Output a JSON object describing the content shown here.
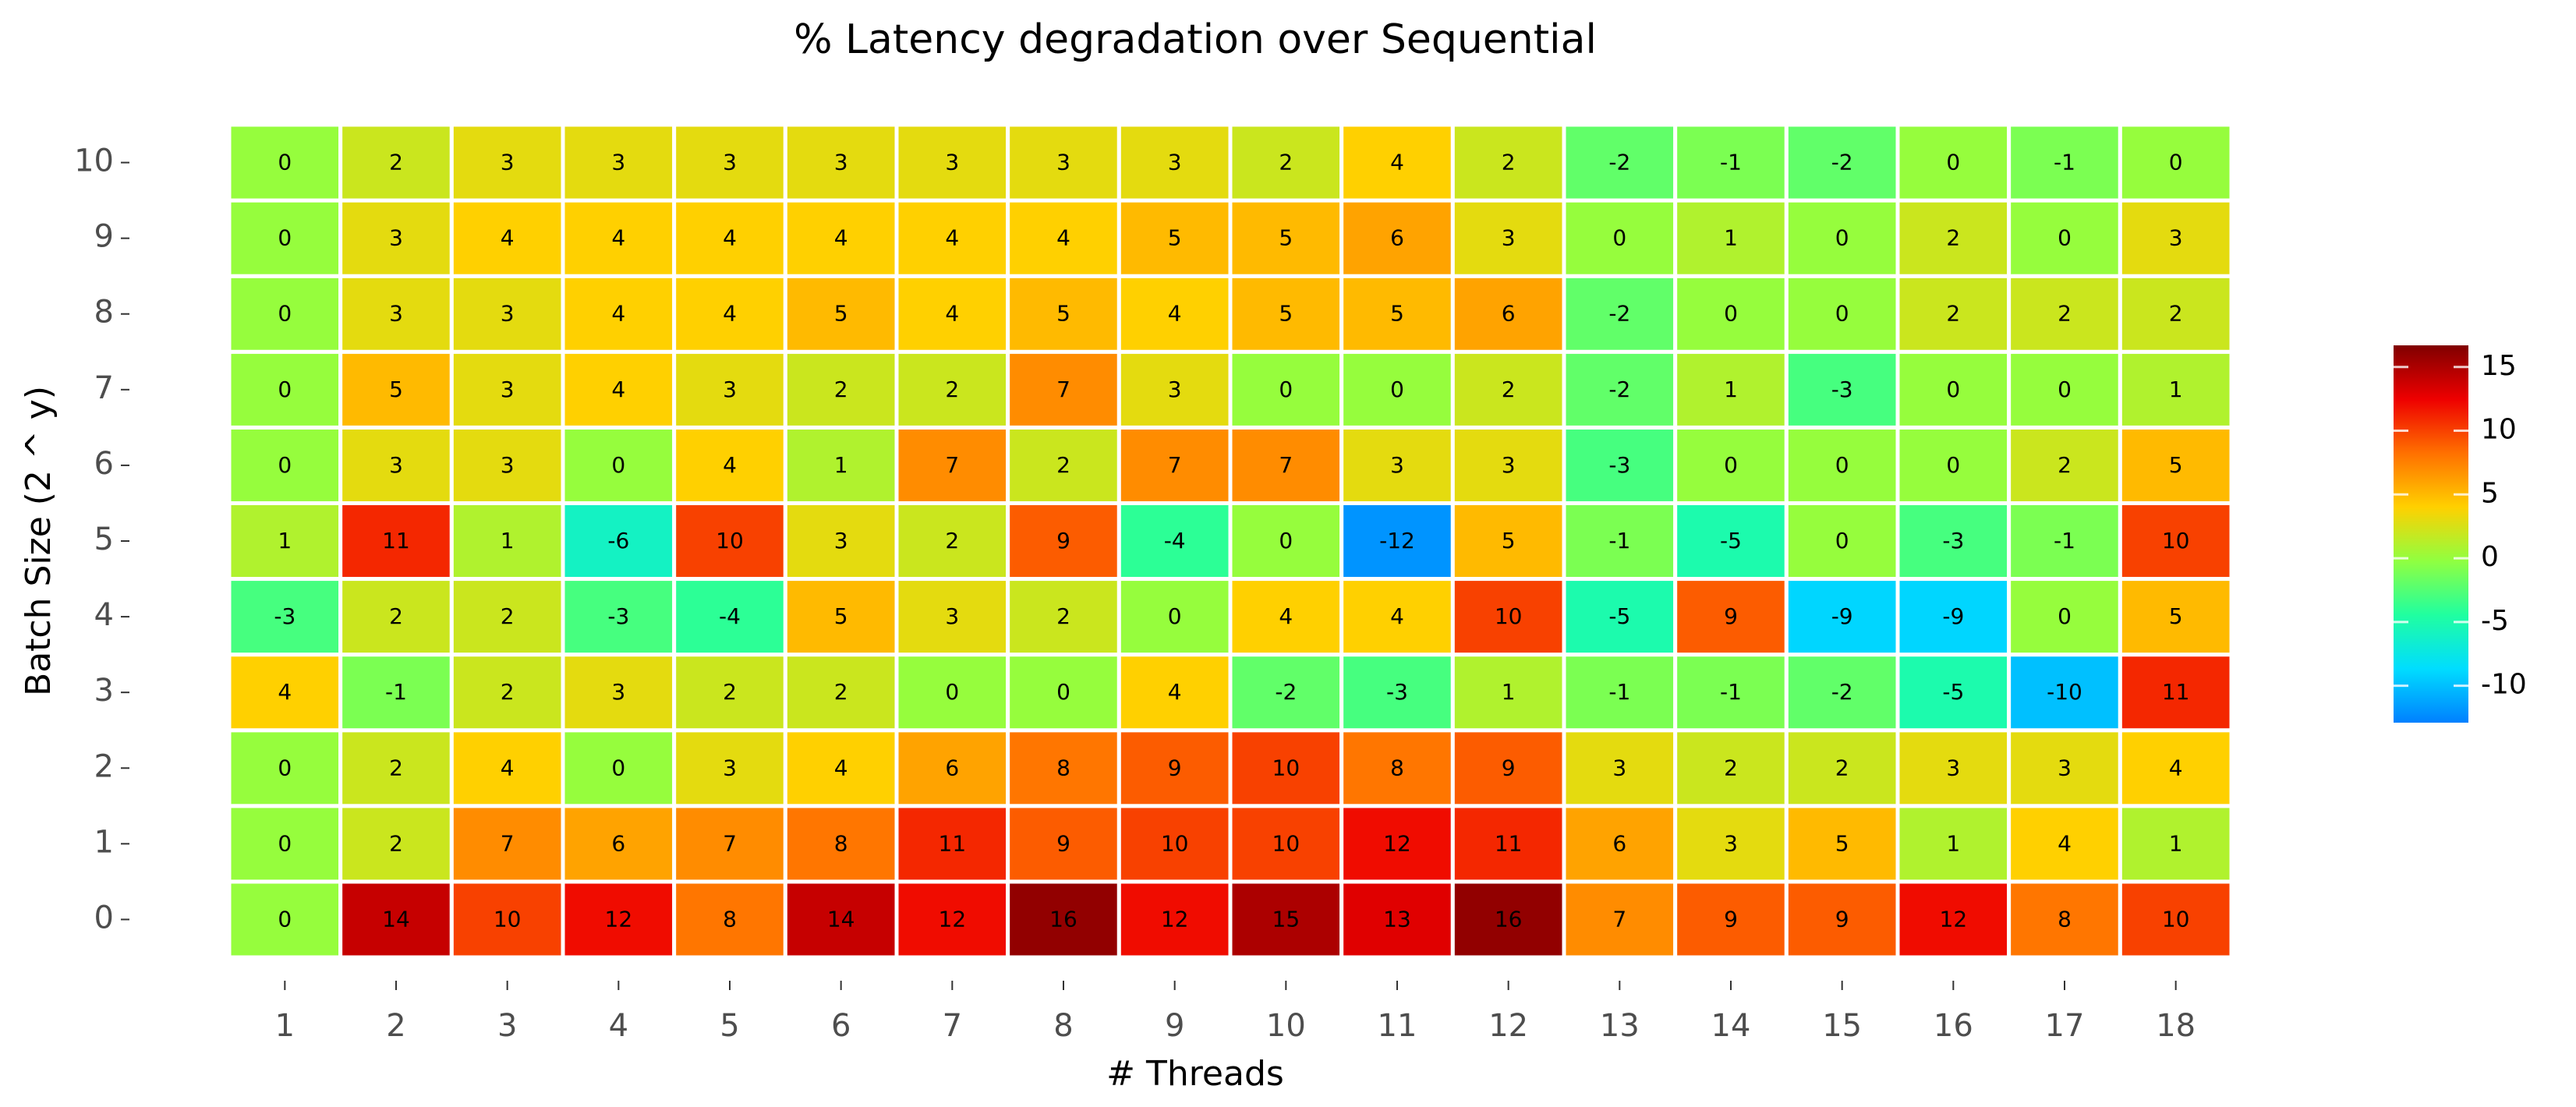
{
  "chart_data": {
    "type": "heatmap",
    "title": "% Latency degradation over Sequential",
    "x_label": "# Threads",
    "y_label": "Batch Size (2 ^ y)",
    "x": [
      1,
      2,
      3,
      4,
      5,
      6,
      7,
      8,
      9,
      10,
      11,
      12,
      13,
      14,
      15,
      16,
      17,
      18
    ],
    "y": [
      0,
      1,
      2,
      3,
      4,
      5,
      6,
      7,
      8,
      9,
      10
    ],
    "values": [
      [
        0,
        14,
        10,
        12,
        8,
        14,
        12,
        16,
        12,
        15,
        13,
        16,
        7,
        9,
        9,
        12,
        8,
        10
      ],
      [
        0,
        2,
        7,
        6,
        7,
        8,
        11,
        9,
        10,
        10,
        12,
        11,
        6,
        3,
        5,
        1,
        4,
        1
      ],
      [
        0,
        2,
        4,
        0,
        3,
        4,
        6,
        8,
        9,
        10,
        8,
        9,
        3,
        2,
        2,
        3,
        3,
        4
      ],
      [
        4,
        -1,
        2,
        3,
        2,
        2,
        0,
        0,
        4,
        -2,
        -3,
        1,
        -1,
        -1,
        -2,
        -5,
        -10,
        11
      ],
      [
        -3,
        2,
        2,
        -3,
        -4,
        5,
        3,
        2,
        0,
        4,
        4,
        10,
        -5,
        9,
        -9,
        -9,
        0,
        5
      ],
      [
        1,
        11,
        1,
        -6,
        10,
        3,
        2,
        9,
        -4,
        0,
        -12,
        5,
        -1,
        -5,
        0,
        -3,
        -1,
        10
      ],
      [
        0,
        3,
        3,
        0,
        4,
        1,
        7,
        2,
        7,
        7,
        3,
        3,
        -3,
        0,
        0,
        0,
        2,
        5
      ],
      [
        0,
        5,
        3,
        4,
        3,
        2,
        2,
        7,
        3,
        0,
        0,
        2,
        -2,
        1,
        -3,
        0,
        0,
        1
      ],
      [
        0,
        3,
        3,
        4,
        4,
        5,
        4,
        5,
        4,
        5,
        5,
        6,
        -2,
        0,
        0,
        2,
        2,
        2
      ],
      [
        0,
        3,
        4,
        4,
        4,
        4,
        4,
        4,
        5,
        5,
        6,
        3,
        0,
        1,
        0,
        2,
        0,
        3
      ],
      [
        0,
        2,
        3,
        3,
        3,
        3,
        3,
        3,
        3,
        2,
        4,
        2,
        -2,
        -1,
        -2,
        0,
        -1,
        0
      ]
    ],
    "zlim": [
      -12.9,
      16.7
    ],
    "zticks": [
      -10,
      -5,
      0,
      5,
      10,
      15
    ],
    "colors": [
      "#0080ff",
      "#00ddff",
      "#20ffa0",
      "#90ff40",
      "#ffd000",
      "#ff7000",
      "#ee0000",
      "#800000"
    ]
  }
}
